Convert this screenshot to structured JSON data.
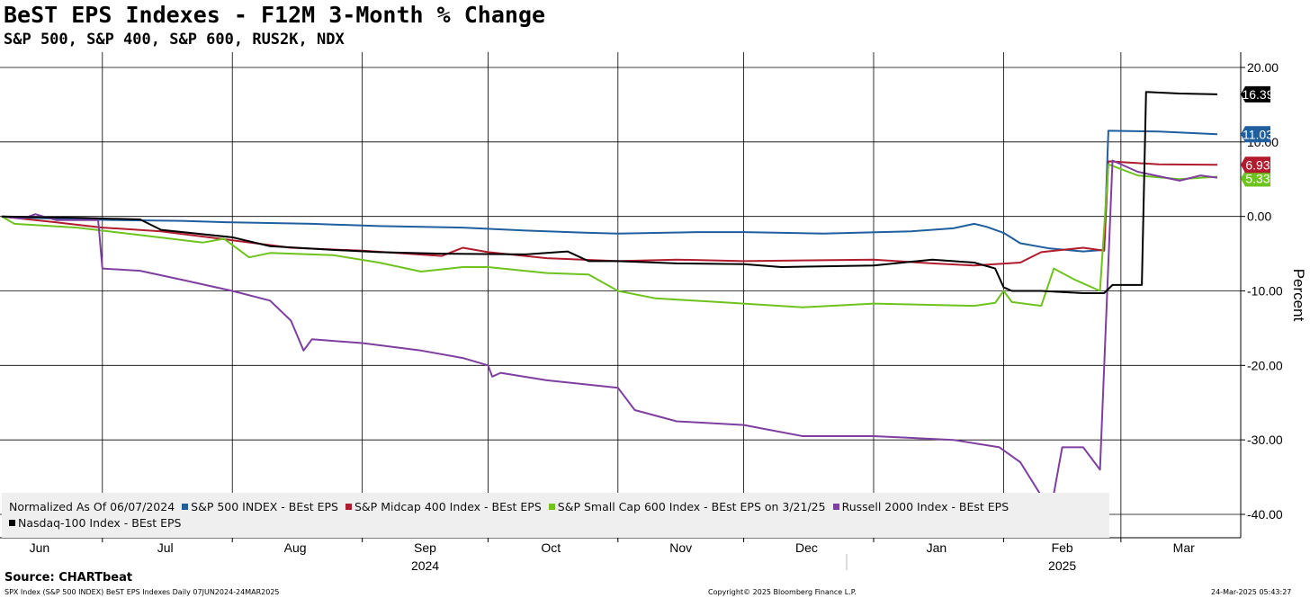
{
  "header": {
    "title": "BeST EPS Indexes - F12M 3-Month % Change",
    "subtitle": "S&P 500, S&P 400, S&P 600, RUS2K, NDX"
  },
  "legend": {
    "note": "Normalized As Of 06/07/2024"
  },
  "footer": {
    "source": "Source: CHARTbeat",
    "left": "SPX Index (S&P 500 INDEX) BeST EPS Indexes  Daily 07JUN2024-24MAR2025",
    "center": "Copyright© 2025 Bloomberg Finance L.P.",
    "right": "24-Mar-2025 05:43:27"
  },
  "chart_data": {
    "type": "line",
    "title": "BeST EPS Indexes - F12M 3-Month % Change",
    "subtitle": "S&P 500, S&P 400, S&P 600, RUS2K, NDX",
    "ylabel": "Percent",
    "ylim": [
      -40,
      20
    ],
    "yticks": [
      20,
      10,
      0,
      -10,
      -20,
      -30,
      -40
    ],
    "ytick_labels": [
      "20.00",
      "10.00",
      "0.00",
      "-10.00",
      "-20.00",
      "-30.00",
      "-40.00"
    ],
    "xlim": [
      "2024-06-07",
      "2025-03-24"
    ],
    "month_labels": [
      {
        "date": "2024-06-16",
        "label": "Jun"
      },
      {
        "date": "2024-07-16",
        "label": "Jul"
      },
      {
        "date": "2024-08-16",
        "label": "Aug"
      },
      {
        "date": "2024-09-16",
        "label": "Sep"
      },
      {
        "date": "2024-10-16",
        "label": "Oct"
      },
      {
        "date": "2024-11-16",
        "label": "Nov"
      },
      {
        "date": "2024-12-16",
        "label": "Dec"
      },
      {
        "date": "2025-01-16",
        "label": "Jan"
      },
      {
        "date": "2025-02-15",
        "label": "Feb"
      },
      {
        "date": "2025-03-16",
        "label": "Mar"
      }
    ],
    "month_boundaries": [
      "2024-07-01",
      "2024-08-01",
      "2024-09-01",
      "2024-10-01",
      "2024-11-01",
      "2024-12-01",
      "2025-01-01",
      "2025-02-01",
      "2025-03-01"
    ],
    "year_labels": [
      {
        "date": "2024-09-16",
        "label": "2024"
      },
      {
        "date": "2025-02-15",
        "label": "2025"
      }
    ],
    "year_boundary": "2025-01-01",
    "grid": true,
    "legend_position": "bottom-left",
    "series": [
      {
        "name": "S&P 500 INDEX - BEst EPS",
        "color": "#1f5f9e",
        "last_value": "11.03",
        "points": [
          [
            "2024-06-07",
            0
          ],
          [
            "2024-06-20",
            -0.3
          ],
          [
            "2024-07-05",
            -0.5
          ],
          [
            "2024-07-20",
            -0.6
          ],
          [
            "2024-08-01",
            -0.8
          ],
          [
            "2024-08-20",
            -1.0
          ],
          [
            "2024-09-05",
            -1.3
          ],
          [
            "2024-09-25",
            -1.5
          ],
          [
            "2024-10-10",
            -1.9
          ],
          [
            "2024-10-25",
            -2.2
          ],
          [
            "2024-11-01",
            -2.3
          ],
          [
            "2024-11-20",
            -2.1
          ],
          [
            "2024-12-01",
            -2.1
          ],
          [
            "2024-12-20",
            -2.3
          ],
          [
            "2025-01-10",
            -2.0
          ],
          [
            "2025-01-20",
            -1.6
          ],
          [
            "2025-01-25",
            -1.0
          ],
          [
            "2025-01-28",
            -1.4
          ],
          [
            "2025-02-01",
            -2.2
          ],
          [
            "2025-02-05",
            -3.6
          ],
          [
            "2025-02-12",
            -4.3
          ],
          [
            "2025-02-20",
            -4.7
          ],
          [
            "2025-02-25",
            -4.5
          ],
          [
            "2025-02-26",
            11.5
          ],
          [
            "2025-03-10",
            11.4
          ],
          [
            "2025-03-24",
            11.03
          ]
        ]
      },
      {
        "name": "S&P Midcap 400 Index - BEst EPS",
        "color": "#b01c2e",
        "last_value": "6.93",
        "points": [
          [
            "2024-06-07",
            0
          ],
          [
            "2024-06-20",
            -0.8
          ],
          [
            "2024-07-01",
            -1.5
          ],
          [
            "2024-07-15",
            -2.0
          ],
          [
            "2024-08-01",
            -3.2
          ],
          [
            "2024-08-15",
            -4.2
          ],
          [
            "2024-09-01",
            -4.6
          ],
          [
            "2024-09-20",
            -5.3
          ],
          [
            "2024-09-25",
            -4.2
          ],
          [
            "2024-10-01",
            -4.8
          ],
          [
            "2024-10-15",
            -5.6
          ],
          [
            "2024-11-01",
            -6.0
          ],
          [
            "2024-11-15",
            -5.8
          ],
          [
            "2024-12-01",
            -6.0
          ],
          [
            "2025-01-01",
            -5.8
          ],
          [
            "2025-01-15",
            -6.3
          ],
          [
            "2025-01-25",
            -6.6
          ],
          [
            "2025-01-30",
            -6.4
          ],
          [
            "2025-02-05",
            -6.2
          ],
          [
            "2025-02-10",
            -4.8
          ],
          [
            "2025-02-15",
            -4.5
          ],
          [
            "2025-02-20",
            -4.2
          ],
          [
            "2025-02-25",
            -4.6
          ],
          [
            "2025-02-26",
            7.4
          ],
          [
            "2025-03-10",
            7.0
          ],
          [
            "2025-03-24",
            6.93
          ]
        ]
      },
      {
        "name": "S&P Small Cap 600 Index - BEst EPS on 3/21/25",
        "color": "#6ec31e",
        "last_value": "5.33",
        "points": [
          [
            "2024-06-07",
            0
          ],
          [
            "2024-06-10",
            -1.0
          ],
          [
            "2024-06-25",
            -1.5
          ],
          [
            "2024-07-10",
            -2.5
          ],
          [
            "2024-07-25",
            -3.5
          ],
          [
            "2024-07-30",
            -3.0
          ],
          [
            "2024-08-05",
            -5.5
          ],
          [
            "2024-08-10",
            -4.9
          ],
          [
            "2024-08-25",
            -5.2
          ],
          [
            "2024-09-05",
            -6.2
          ],
          [
            "2024-09-15",
            -7.4
          ],
          [
            "2024-09-25",
            -6.8
          ],
          [
            "2024-10-01",
            -6.8
          ],
          [
            "2024-10-15",
            -7.6
          ],
          [
            "2024-10-25",
            -7.8
          ],
          [
            "2024-11-01",
            -10.0
          ],
          [
            "2024-11-10",
            -11.0
          ],
          [
            "2024-11-25",
            -11.5
          ],
          [
            "2024-12-15",
            -12.2
          ],
          [
            "2025-01-01",
            -11.7
          ],
          [
            "2025-01-25",
            -12.0
          ],
          [
            "2025-01-30",
            -11.6
          ],
          [
            "2025-02-01",
            -10.0
          ],
          [
            "2025-02-03",
            -11.5
          ],
          [
            "2025-02-10",
            -12.0
          ],
          [
            "2025-02-13",
            -7.0
          ],
          [
            "2025-02-18",
            -8.5
          ],
          [
            "2025-02-24",
            -10.0
          ],
          [
            "2025-02-26",
            7.0
          ],
          [
            "2025-03-05",
            5.5
          ],
          [
            "2025-03-15",
            5.0
          ],
          [
            "2025-03-24",
            5.33
          ]
        ]
      },
      {
        "name": "Russell 2000 Index - BEst EPS",
        "color": "#7e3fa0",
        "points": [
          [
            "2024-06-07",
            0
          ],
          [
            "2024-06-12",
            -0.3
          ],
          [
            "2024-06-15",
            0.3
          ],
          [
            "2024-06-20",
            -0.5
          ],
          [
            "2024-06-30",
            -0.5
          ],
          [
            "2024-07-01",
            -7.0
          ],
          [
            "2024-07-10",
            -7.3
          ],
          [
            "2024-07-20",
            -8.5
          ],
          [
            "2024-08-01",
            -10.0
          ],
          [
            "2024-08-10",
            -11.3
          ],
          [
            "2024-08-15",
            -14.0
          ],
          [
            "2024-08-18",
            -18.0
          ],
          [
            "2024-08-20",
            -16.5
          ],
          [
            "2024-09-01",
            -17.0
          ],
          [
            "2024-09-15",
            -18.0
          ],
          [
            "2024-09-25",
            -19.0
          ],
          [
            "2024-10-01",
            -20.0
          ],
          [
            "2024-10-02",
            -21.5
          ],
          [
            "2024-10-04",
            -21.0
          ],
          [
            "2024-10-15",
            -22.0
          ],
          [
            "2024-11-01",
            -23.0
          ],
          [
            "2024-11-05",
            -26.0
          ],
          [
            "2024-11-15",
            -27.5
          ],
          [
            "2024-12-01",
            -28.0
          ],
          [
            "2024-12-15",
            -29.5
          ],
          [
            "2025-01-01",
            -29.5
          ],
          [
            "2025-01-20",
            -30.0
          ],
          [
            "2025-01-31",
            -31.0
          ],
          [
            "2025-02-05",
            -33.0
          ],
          [
            "2025-02-10",
            -37.5
          ],
          [
            "2025-02-13",
            -37.2
          ],
          [
            "2025-02-15",
            -31.0
          ],
          [
            "2025-02-20",
            -31.0
          ],
          [
            "2025-02-24",
            -34.0
          ],
          [
            "2025-02-27",
            7.5
          ],
          [
            "2025-03-05",
            6.0
          ],
          [
            "2025-03-15",
            4.8
          ],
          [
            "2025-03-20",
            5.5
          ],
          [
            "2025-03-24",
            5.2
          ]
        ]
      },
      {
        "name": "Nasdaq-100 Index - BEst EPS",
        "color": "#000000",
        "last_value": "16.39",
        "points": [
          [
            "2024-06-07",
            0
          ],
          [
            "2024-06-25",
            -0.2
          ],
          [
            "2024-07-10",
            -0.4
          ],
          [
            "2024-07-15",
            -1.8
          ],
          [
            "2024-08-01",
            -2.8
          ],
          [
            "2024-08-10",
            -4.0
          ],
          [
            "2024-08-25",
            -4.5
          ],
          [
            "2024-09-05",
            -4.8
          ],
          [
            "2024-09-20",
            -5.0
          ],
          [
            "2024-10-10",
            -5.1
          ],
          [
            "2024-10-20",
            -4.7
          ],
          [
            "2024-10-25",
            -6.0
          ],
          [
            "2024-11-01",
            -6.0
          ],
          [
            "2024-11-15",
            -6.3
          ],
          [
            "2024-12-01",
            -6.4
          ],
          [
            "2024-12-10",
            -6.8
          ],
          [
            "2025-01-01",
            -6.6
          ],
          [
            "2025-01-15",
            -5.8
          ],
          [
            "2025-01-25",
            -6.2
          ],
          [
            "2025-01-30",
            -7.0
          ],
          [
            "2025-02-01",
            -9.5
          ],
          [
            "2025-02-03",
            -10.0
          ],
          [
            "2025-02-10",
            -10.0
          ],
          [
            "2025-02-20",
            -10.3
          ],
          [
            "2025-02-25",
            -10.3
          ],
          [
            "2025-02-27",
            -9.2
          ],
          [
            "2025-03-06",
            -9.2
          ],
          [
            "2025-03-07",
            16.7
          ],
          [
            "2025-03-15",
            16.5
          ],
          [
            "2025-03-24",
            16.39
          ]
        ]
      }
    ]
  }
}
